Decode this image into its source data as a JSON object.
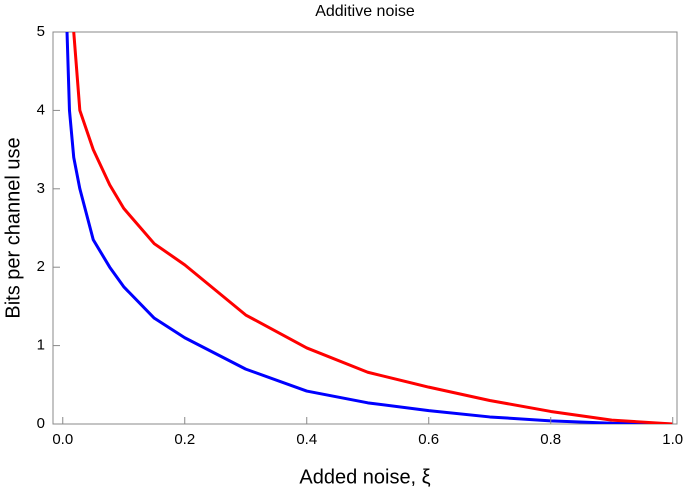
{
  "chart_data": {
    "type": "line",
    "title": "Additive noise",
    "xlabel": "Added noise, ξ",
    "ylabel": "Bits per channel use",
    "x": [
      0.007,
      0.011,
      0.018,
      0.028,
      0.05,
      0.077,
      0.1,
      0.15,
      0.2,
      0.3,
      0.4,
      0.5,
      0.6,
      0.7,
      0.8,
      0.9,
      1.0
    ],
    "series": [
      {
        "color": "#0000ff",
        "values": [
          5,
          4,
          3.4,
          3.0,
          2.35,
          2.0,
          1.75,
          1.35,
          1.1,
          0.7,
          0.42,
          0.27,
          0.17,
          0.09,
          0.04,
          0.01,
          0
        ]
      },
      {
        "color": "#ff0000",
        "values": [
          null,
          null,
          5,
          4,
          3.5,
          3.05,
          2.75,
          2.3,
          2.03,
          1.39,
          0.97,
          0.66,
          0.47,
          0.3,
          0.16,
          0.05,
          0
        ]
      }
    ],
    "xlim": [
      -0.016,
      1.007
    ],
    "ylim": [
      0,
      5
    ],
    "xticks": [
      {
        "value": 0,
        "label": "0.0"
      },
      0.2,
      0.4,
      0.6,
      0.8,
      {
        "value": 1,
        "label": "1.0"
      }
    ],
    "yticks": [
      0,
      1,
      2,
      3,
      4,
      5
    ]
  }
}
